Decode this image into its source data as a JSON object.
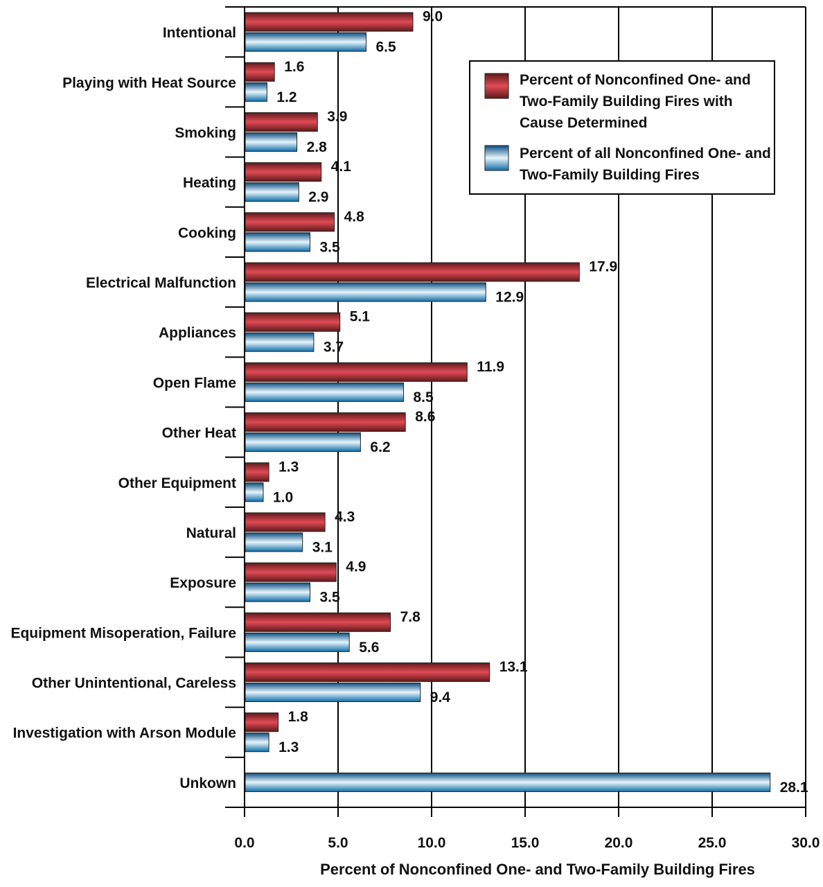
{
  "chart_data": {
    "type": "bar",
    "orientation": "horizontal",
    "xlabel": "Percent of Nonconfined One- and Two-Family Building Fires",
    "xlim": [
      0,
      30
    ],
    "xticks": [
      "0.0",
      "5.0",
      "10.0",
      "15.0",
      "20.0",
      "25.0",
      "30.0"
    ],
    "grid": "vertical",
    "legend_position": "top-right",
    "categories": [
      "Intentional",
      "Playing with Heat Source",
      "Smoking",
      "Heating",
      "Cooking",
      "Electrical Malfunction",
      "Appliances",
      "Open Flame",
      "Other Heat",
      "Other Equipment",
      "Natural",
      "Exposure",
      "Equipment Misoperation, Failure",
      "Other Unintentional, Careless",
      "Investigation with Arson Module",
      "Unkown"
    ],
    "series": [
      {
        "name": "Percent of Nonconfined One- and Two-Family Building Fires with Cause Determined",
        "legend_lines": [
          "Percent of Nonconfined One- and",
          "Two-Family Building Fires with",
          "Cause Determined"
        ],
        "color": "#b8323a",
        "values": [
          9.0,
          1.6,
          3.9,
          4.1,
          4.8,
          17.9,
          5.1,
          11.9,
          8.6,
          1.3,
          4.3,
          4.9,
          7.8,
          13.1,
          1.8,
          null
        ],
        "labels": [
          "9.0",
          "1.6",
          "3.9",
          "4.1",
          "4.8",
          "17.9",
          "5.1",
          "11.9",
          "8.6",
          "1.3",
          "4.3",
          "4.9",
          "7.8",
          "13.1",
          "1.8",
          ""
        ]
      },
      {
        "name": "Percent of all Nonconfined One- and Two-Family Building Fires",
        "legend_lines": [
          "Percent of all Nonconfined One- and",
          "Two-Family Building Fires"
        ],
        "color": "#1e8fc9",
        "values": [
          6.5,
          1.2,
          2.8,
          2.9,
          3.5,
          12.9,
          3.7,
          8.5,
          6.2,
          1.0,
          3.1,
          3.5,
          5.6,
          9.4,
          1.3,
          28.1
        ],
        "labels": [
          "6.5",
          "1.2",
          "2.8",
          "2.9",
          "3.5",
          "12.9",
          "3.7",
          "8.5",
          "6.2",
          "1.0",
          "3.1",
          "3.5",
          "5.6",
          "9.4",
          "1.3",
          "28.1"
        ]
      }
    ]
  }
}
